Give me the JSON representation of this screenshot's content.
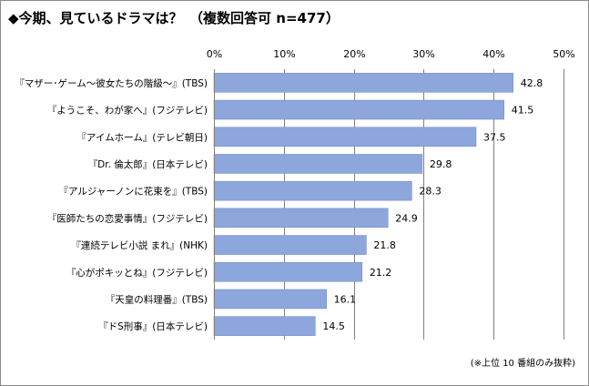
{
  "title": "◆今期、見ているドラマは？　（複数回答可 n=477）",
  "note": "(※上位 10 番組のみ抜粋)",
  "colors": {
    "bar": "#8DA6DC",
    "bar_stroke": "#6d87c4",
    "gridline": "#808080",
    "axis": "#808080"
  },
  "chart_data": {
    "type": "bar",
    "orientation": "horizontal",
    "categories": [
      "『マザー･ゲーム～彼女たちの階級～』(TBS)",
      "『ようこそ、わが家へ』(フジテレビ)",
      "『アイムホーム』(テレビ朝日)",
      "『Dr. 倫太郎』(日本テレビ)",
      "『アルジャーノンに花束を』(TBS)",
      "『医師たちの恋愛事情』(フジテレビ)",
      "『連続テレビ小説 まれ』(NHK)",
      "『心がポキッとね』(フジテレビ)",
      "『天皇の料理番』(TBS)",
      "『ドS刑事』(日本テレビ)"
    ],
    "values": [
      42.8,
      41.5,
      37.5,
      29.8,
      28.3,
      24.9,
      21.8,
      21.2,
      16.1,
      14.5
    ],
    "data_labels": [
      "42.8",
      "41.5",
      "37.5",
      "29.8",
      "28.3",
      "24.9",
      "21.8",
      "21.2",
      "16.1",
      "14.5"
    ],
    "xlim": [
      0,
      50
    ],
    "xticks": [
      0,
      10,
      20,
      30,
      40,
      50
    ],
    "xtick_labels": [
      "0%",
      "10%",
      "20%",
      "30%",
      "40%",
      "50%"
    ],
    "xaxis_position": "top",
    "grid": true,
    "legend": "none"
  }
}
